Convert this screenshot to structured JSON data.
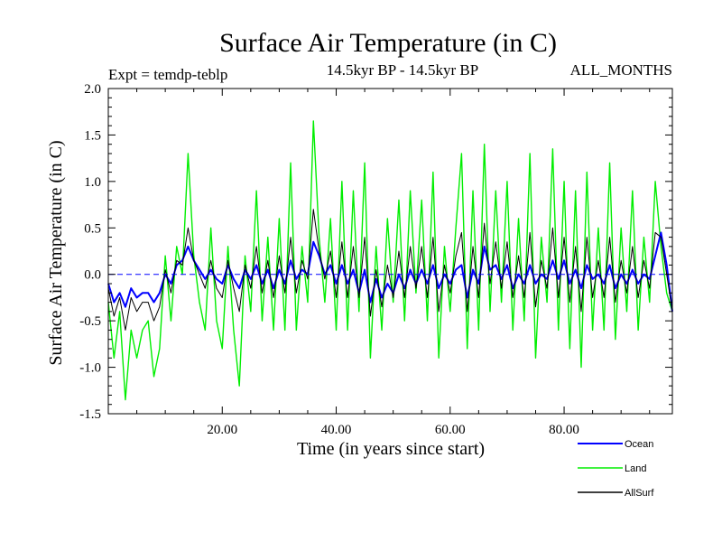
{
  "chart_data": {
    "type": "line",
    "title": "Surface Air Temperature (in C)",
    "subtitle": "14.5kyr BP - 14.5kyr BP",
    "experiment_label": "Expt = temdp-teblp",
    "months_label": "ALL_MONTHS",
    "xlabel": "Time (in years since start)",
    "ylabel": "Surface Air Temperature (in C)",
    "xlim": [
      0,
      99
    ],
    "ylim": [
      -1.5,
      2.0
    ],
    "x_ticks": [
      20,
      40,
      60,
      80
    ],
    "x_tick_labels": [
      "20.00",
      "40.00",
      "60.00",
      "80.00"
    ],
    "y_ticks": [
      -1.5,
      -1.0,
      -0.5,
      0.0,
      0.5,
      1.0,
      1.5,
      2.0
    ],
    "y_tick_labels": [
      "-1.5",
      "-1.0",
      "-0.5",
      "0.0",
      "0.5",
      "1.0",
      "1.5",
      "2.0"
    ],
    "zero_line": true,
    "legend_position": "bottom-right",
    "colors": {
      "Ocean": "#0000ff",
      "Land": "#00ee00",
      "AllSurf": "#000000",
      "zero": "#0000ff"
    },
    "series": [
      {
        "name": "Land",
        "x_start": 0,
        "x_step": 1,
        "values": [
          -0.3,
          -0.9,
          -0.4,
          -1.35,
          -0.6,
          -0.9,
          -0.6,
          -0.5,
          -1.1,
          -0.8,
          0.2,
          -0.5,
          0.3,
          0.0,
          1.3,
          0.2,
          -0.3,
          -0.6,
          0.5,
          -0.5,
          -0.8,
          0.3,
          -0.6,
          -1.2,
          0.2,
          -0.4,
          0.9,
          -0.5,
          0.4,
          -0.6,
          0.6,
          -0.6,
          1.2,
          -0.6,
          0.3,
          -0.3,
          1.65,
          0.4,
          -0.3,
          0.6,
          -0.6,
          1.0,
          -0.6,
          0.9,
          -0.4,
          1.2,
          -0.9,
          0.3,
          -0.6,
          0.6,
          -0.3,
          0.8,
          -0.5,
          0.9,
          -0.2,
          0.8,
          -0.5,
          1.1,
          -0.9,
          0.3,
          -0.4,
          0.5,
          1.3,
          -0.8,
          0.9,
          -0.6,
          1.4,
          -0.4,
          0.9,
          -0.3,
          1.0,
          -0.6,
          0.6,
          -0.5,
          1.3,
          -0.9,
          0.4,
          -0.3,
          1.35,
          -0.6,
          1.0,
          -0.8,
          0.9,
          -1.0,
          1.1,
          -0.6,
          0.5,
          -0.6,
          1.2,
          -0.7,
          0.5,
          -0.4,
          0.9,
          -0.6,
          0.4,
          -0.3,
          1.0,
          0.3,
          -0.2,
          -0.4
        ]
      },
      {
        "name": "Ocean",
        "x_start": 0,
        "x_step": 1,
        "values": [
          -0.1,
          -0.3,
          -0.2,
          -0.35,
          -0.15,
          -0.25,
          -0.2,
          -0.2,
          -0.3,
          -0.2,
          0.0,
          -0.1,
          0.1,
          0.15,
          0.3,
          0.15,
          0.05,
          -0.05,
          0.05,
          -0.05,
          -0.1,
          0.1,
          -0.05,
          -0.15,
          0.05,
          -0.05,
          0.1,
          -0.1,
          0.05,
          -0.15,
          0.05,
          -0.1,
          0.15,
          -0.05,
          0.05,
          0.0,
          0.35,
          0.2,
          0.0,
          0.1,
          -0.1,
          0.1,
          -0.1,
          0.05,
          -0.2,
          0.05,
          -0.3,
          -0.05,
          -0.25,
          -0.1,
          -0.2,
          0.0,
          -0.15,
          0.05,
          -0.1,
          0.05,
          -0.1,
          0.1,
          -0.15,
          0.0,
          -0.1,
          0.05,
          0.1,
          -0.25,
          0.05,
          -0.1,
          0.3,
          0.05,
          0.1,
          -0.05,
          0.1,
          -0.15,
          0.0,
          -0.1,
          0.1,
          -0.1,
          0.0,
          -0.05,
          0.15,
          -0.05,
          0.15,
          -0.1,
          0.05,
          -0.15,
          0.1,
          -0.05,
          0.0,
          -0.1,
          0.1,
          -0.15,
          0.0,
          -0.1,
          0.05,
          -0.1,
          0.0,
          -0.05,
          0.2,
          0.45,
          0.1,
          -0.4
        ]
      },
      {
        "name": "AllSurf",
        "x_start": 0,
        "x_step": 1,
        "values": [
          -0.15,
          -0.45,
          -0.25,
          -0.6,
          -0.25,
          -0.4,
          -0.3,
          -0.3,
          -0.5,
          -0.35,
          0.05,
          -0.2,
          0.15,
          0.1,
          0.5,
          0.15,
          0.0,
          -0.15,
          0.15,
          -0.15,
          -0.25,
          0.15,
          -0.15,
          -0.4,
          0.1,
          -0.15,
          0.3,
          -0.2,
          0.15,
          -0.25,
          0.2,
          -0.2,
          0.4,
          -0.2,
          0.15,
          -0.05,
          0.7,
          0.25,
          -0.05,
          0.25,
          -0.25,
          0.35,
          -0.25,
          0.3,
          -0.25,
          0.4,
          -0.45,
          0.05,
          -0.35,
          0.1,
          -0.25,
          0.25,
          -0.25,
          0.3,
          -0.15,
          0.3,
          -0.25,
          0.4,
          -0.4,
          0.1,
          -0.2,
          0.2,
          0.45,
          -0.4,
          0.3,
          -0.25,
          0.55,
          -0.1,
          0.35,
          -0.15,
          0.35,
          -0.25,
          0.2,
          -0.25,
          0.45,
          -0.35,
          0.15,
          -0.15,
          0.5,
          -0.25,
          0.4,
          -0.3,
          0.3,
          -0.4,
          0.4,
          -0.25,
          0.15,
          -0.25,
          0.4,
          -0.3,
          0.15,
          -0.2,
          0.3,
          -0.25,
          0.15,
          -0.15,
          0.45,
          0.4,
          0.0,
          -0.4
        ]
      }
    ],
    "legend": [
      "Ocean",
      "Land",
      "AllSurf"
    ]
  }
}
